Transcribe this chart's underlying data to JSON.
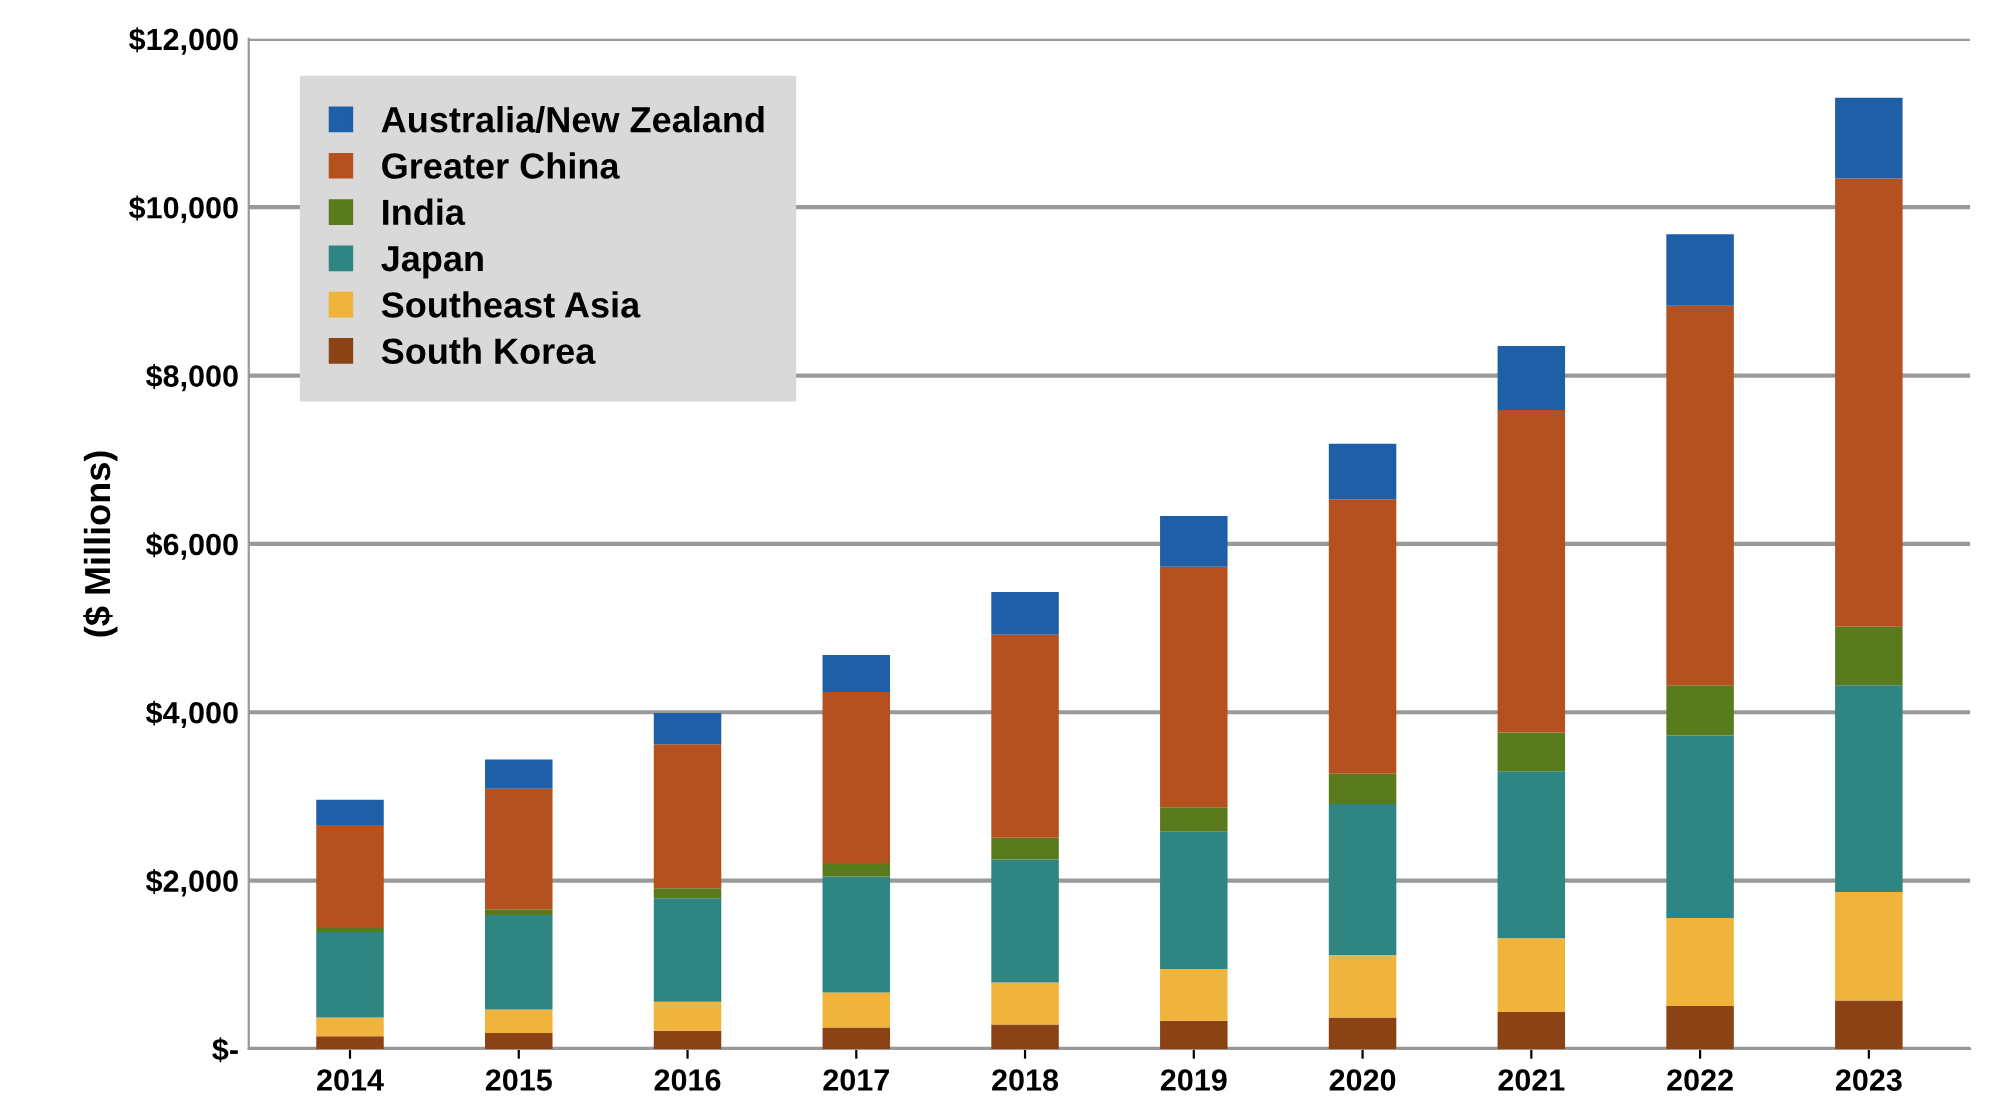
{
  "chart_data": {
    "type": "bar",
    "stacked": true,
    "ylabel": "($ Millions)",
    "categories": [
      "2014",
      "2015",
      "2016",
      "2017",
      "2018",
      "2019",
      "2020",
      "2021",
      "2022",
      "2023"
    ],
    "series": [
      {
        "name": "South Korea",
        "color": "#8b4316",
        "values": [
          150,
          190,
          215,
          255,
          290,
          335,
          375,
          440,
          510,
          575
        ]
      },
      {
        "name": "Southeast Asia",
        "color": "#f0b43c",
        "values": [
          225,
          280,
          345,
          415,
          500,
          615,
          740,
          875,
          1045,
          1290
        ]
      },
      {
        "name": "Japan",
        "color": "#2e8582",
        "values": [
          1015,
          1120,
          1230,
          1380,
          1460,
          1630,
          1795,
          1985,
          2170,
          2455
        ]
      },
      {
        "name": "India",
        "color": "#5a7a1e",
        "values": [
          60,
          70,
          120,
          160,
          260,
          290,
          360,
          460,
          595,
          695
        ]
      },
      {
        "name": "Greater China",
        "color": "#b5501f",
        "values": [
          1210,
          1430,
          1710,
          2030,
          2410,
          2860,
          3260,
          3830,
          4510,
          5325
        ]
      },
      {
        "name": "Australia/New Zealand",
        "color": "#1f5fa8",
        "values": [
          300,
          350,
          370,
          440,
          510,
          600,
          660,
          760,
          850,
          960
        ]
      }
    ],
    "ylim": [
      0,
      12000
    ],
    "yticks": [
      {
        "value": 0,
        "label": "$-"
      },
      {
        "value": 2000,
        "label": "$2,000"
      },
      {
        "value": 4000,
        "label": "$4,000"
      },
      {
        "value": 6000,
        "label": "$6,000"
      },
      {
        "value": 8000,
        "label": "$8,000"
      },
      {
        "value": 10000,
        "label": "$10,000"
      },
      {
        "value": 12000,
        "label": "$12,000"
      }
    ],
    "grid": "y",
    "legend": "top left"
  }
}
